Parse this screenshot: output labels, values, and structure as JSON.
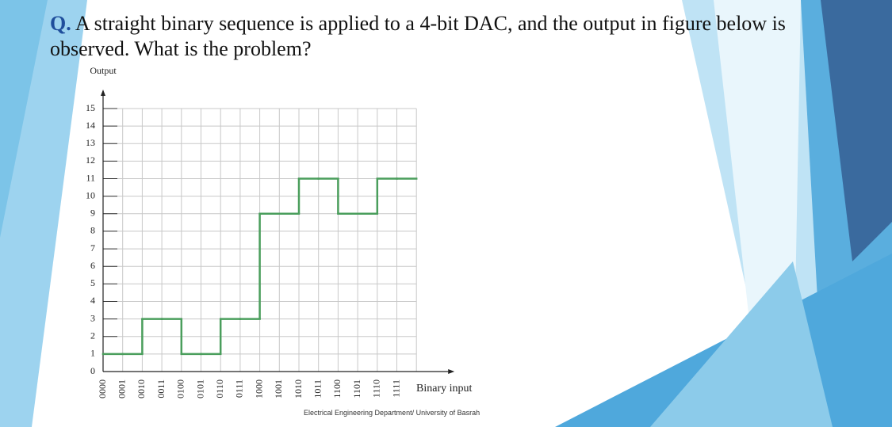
{
  "question_label": "Q.",
  "question": "A straight binary sequence is applied to a 4-bit DAC, and the output in figure below is observed. What is the problem?",
  "footer": "Electrical Engineering Department/ University of Basrah",
  "chart_data": {
    "type": "step",
    "y_label": "Output",
    "x_label": "Binary input",
    "categories": [
      "0000",
      "0001",
      "0010",
      "0011",
      "0100",
      "0101",
      "0110",
      "0111",
      "1000",
      "1001",
      "1010",
      "1011",
      "1100",
      "1101",
      "1110",
      "1111"
    ],
    "values": [
      1,
      1,
      3,
      3,
      1,
      1,
      3,
      3,
      9,
      9,
      11,
      11,
      9,
      9,
      11,
      11
    ],
    "color": "#4a9e5c",
    "ylim": [
      0,
      15
    ],
    "yticks": [
      0,
      1,
      2,
      3,
      4,
      5,
      6,
      7,
      8,
      9,
      10,
      11,
      12,
      13,
      14,
      15
    ],
    "grid": true
  }
}
